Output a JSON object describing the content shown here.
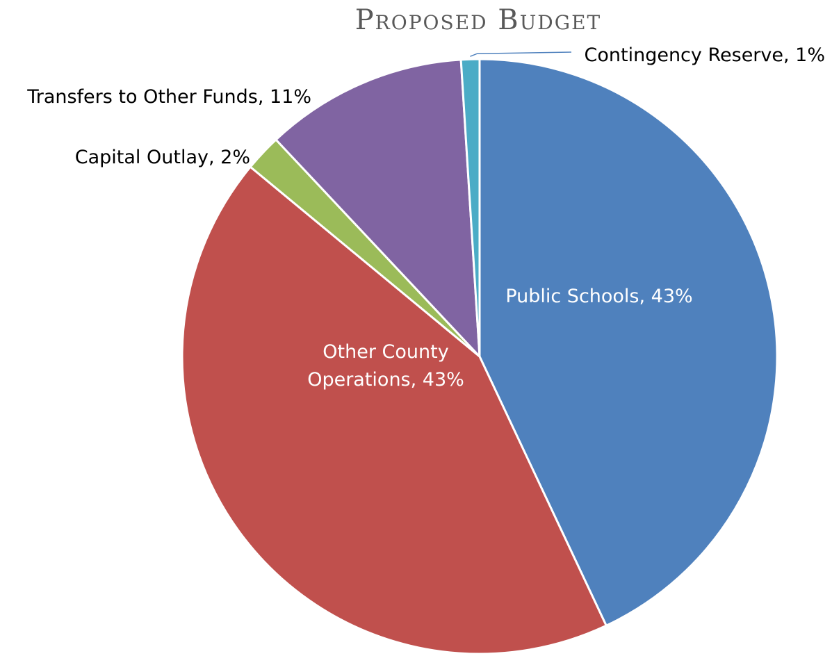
{
  "chart_data": {
    "type": "pie",
    "title": "Proposed Budget",
    "start_angle_deg": 0,
    "direction": "clockwise",
    "slices": [
      {
        "label": "Public Schools",
        "value": 43,
        "display": "43%",
        "color": "#4F81BD"
      },
      {
        "label": "Other County Operations",
        "value": 43,
        "display": "43%",
        "color": "#C0504D"
      },
      {
        "label": "Capital Outlay",
        "value": 2,
        "display": "2%",
        "color": "#9BBB59"
      },
      {
        "label": "Transfers to Other Funds",
        "value": 11,
        "display": "11%",
        "color": "#8064A2"
      },
      {
        "label": "Contingency Reserve",
        "value": 1,
        "display": "1%",
        "color": "#4BACC6"
      }
    ],
    "data_labels": [
      {
        "lines": [
          "Public Schools, 43%"
        ],
        "placement": "inside"
      },
      {
        "lines": [
          "Other County",
          "Operations, 43%"
        ],
        "placement": "inside"
      },
      {
        "lines": [
          "Capital Outlay, 2%"
        ],
        "placement": "outside"
      },
      {
        "lines": [
          "Transfers to Other Funds, 11%"
        ],
        "placement": "outside"
      },
      {
        "lines": [
          "Contingency Reserve, 1%"
        ],
        "placement": "outside",
        "leader_line": true
      }
    ],
    "legend": "none"
  }
}
